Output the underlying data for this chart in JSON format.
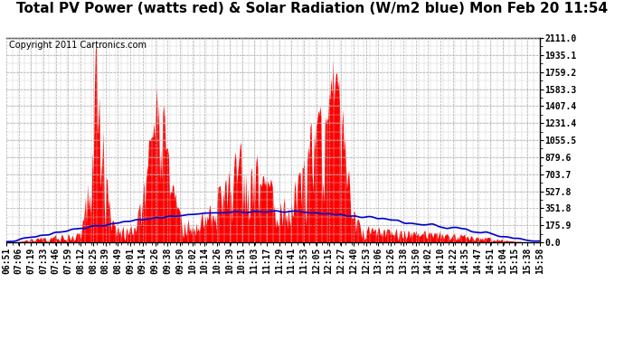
{
  "title": "Total PV Power (watts red) & Solar Radiation (W/m2 blue) Mon Feb 20 11:54",
  "copyright": "Copyright 2011 Cartronics.com",
  "y_max": 2111.0,
  "y_min": 0.0,
  "y_ticks": [
    0.0,
    175.9,
    351.8,
    527.8,
    703.7,
    879.6,
    1055.5,
    1231.4,
    1407.4,
    1583.3,
    1759.2,
    1935.1,
    2111.0
  ],
  "x_labels": [
    "06:51",
    "07:06",
    "07:19",
    "07:33",
    "07:46",
    "07:59",
    "08:12",
    "08:25",
    "08:39",
    "08:49",
    "09:01",
    "09:14",
    "09:26",
    "09:38",
    "09:50",
    "10:02",
    "10:14",
    "10:26",
    "10:39",
    "10:51",
    "11:03",
    "11:17",
    "11:29",
    "11:41",
    "11:53",
    "12:05",
    "12:15",
    "12:27",
    "12:40",
    "12:53",
    "13:06",
    "13:26",
    "13:38",
    "13:50",
    "14:02",
    "14:10",
    "14:22",
    "14:35",
    "14:47",
    "14:51",
    "15:04",
    "15:15",
    "15:38",
    "15:58"
  ],
  "background_color": "#ffffff",
  "fill_color": "#ff0000",
  "line_color": "#0000cc",
  "grid_color": "#aaaaaa",
  "title_fontsize": 11,
  "copyright_fontsize": 7,
  "tick_fontsize": 7
}
